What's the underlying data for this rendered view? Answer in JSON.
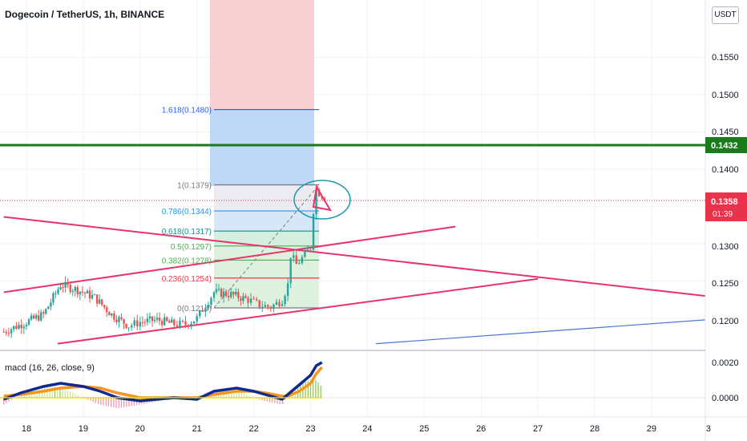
{
  "header": {
    "title": "Dogecoin / TetherUS, 1h, BINANCE",
    "currency": "USDT"
  },
  "price_axis": {
    "ticks": [
      "0.1550",
      "0.1500",
      "0.1450",
      "0.1400",
      "0.1300",
      "0.1250",
      "0.1200"
    ]
  },
  "badges": {
    "level": "0.1432",
    "last_price": "0.1358",
    "countdown": "01:39",
    "level_color": "#1b7a1b",
    "last_color": "#e8334a"
  },
  "macd": {
    "label": "macd (16, 26, close, 9)",
    "ticks": [
      "0.0020",
      "0.0000"
    ]
  },
  "time_axis": {
    "labels": [
      "18",
      "19",
      "20",
      "21",
      "22",
      "23",
      "24",
      "25",
      "26",
      "27",
      "28",
      "29",
      "3"
    ]
  },
  "fib": {
    "labels": [
      "1.618(0.1480)",
      "1(0.1379)",
      "0.786(0.1344)",
      "0.618(0.1317)",
      "0.5(0.1297)",
      "0.382(0.1278)",
      "0.236(0.1254)",
      "0(0.1214)"
    ],
    "colors": [
      "#2962ff",
      "#787b86",
      "#2196f3",
      "#089981",
      "#4caf50",
      "#4caf50",
      "#f23645",
      "#787b86"
    ]
  },
  "chart_data": {
    "type": "candlestick",
    "symbol": "Dogecoin / TetherUS",
    "interval": "1h",
    "exchange": "BINANCE",
    "y_range": [
      0.116,
      0.16
    ],
    "x_range_days": [
      17.6,
      30.0
    ],
    "last_price": 0.1358,
    "horizontal_level": 0.1432,
    "close_path": [
      [
        17.6,
        0.1182
      ],
      [
        18.0,
        0.1195
      ],
      [
        18.3,
        0.1205
      ],
      [
        18.6,
        0.1245
      ],
      [
        18.9,
        0.1238
      ],
      [
        19.2,
        0.1228
      ],
      [
        19.5,
        0.1205
      ],
      [
        19.8,
        0.119
      ],
      [
        20.0,
        0.1195
      ],
      [
        20.3,
        0.1198
      ],
      [
        20.6,
        0.1192
      ],
      [
        20.8,
        0.1192
      ],
      [
        21.0,
        0.12
      ],
      [
        21.15,
        0.1218
      ],
      [
        21.3,
        0.1235
      ],
      [
        21.6,
        0.1232
      ],
      [
        21.9,
        0.1225
      ],
      [
        22.1,
        0.1218
      ],
      [
        22.3,
        0.1215
      ],
      [
        22.5,
        0.1225
      ],
      [
        22.6,
        0.1245
      ],
      [
        22.65,
        0.1285
      ],
      [
        22.75,
        0.1272
      ],
      [
        22.9,
        0.1285
      ],
      [
        23.0,
        0.1295
      ],
      [
        23.05,
        0.1345
      ],
      [
        23.1,
        0.1372
      ],
      [
        23.2,
        0.1365
      ],
      [
        23.3,
        0.1358
      ]
    ],
    "fibonacci": [
      {
        "ratio": 1.618,
        "price": 0.148
      },
      {
        "ratio": 1,
        "price": 0.1379
      },
      {
        "ratio": 0.786,
        "price": 0.1344
      },
      {
        "ratio": 0.618,
        "price": 0.1317
      },
      {
        "ratio": 0.5,
        "price": 0.1297
      },
      {
        "ratio": 0.382,
        "price": 0.1278
      },
      {
        "ratio": 0.236,
        "price": 0.1254
      },
      {
        "ratio": 0,
        "price": 0.1214
      }
    ],
    "fib_time_range_days": [
      21.3,
      23.15
    ],
    "trendlines": [
      {
        "color": "#e8336a",
        "from": [
          17.6,
          0.1235
        ],
        "to": [
          25.55,
          0.1323
        ]
      },
      {
        "color": "#e8336a",
        "from": [
          17.6,
          0.1336
        ],
        "to": [
          29.95,
          0.123
        ]
      },
      {
        "color": "#e8336a",
        "from": [
          18.55,
          0.1166
        ],
        "to": [
          27.0,
          0.1253
        ]
      },
      {
        "color": "#4a76d8",
        "from": [
          24.15,
          0.1166
        ],
        "to": [
          29.95,
          0.1198
        ]
      }
    ],
    "macd": {
      "params": "16, 26, close, 9",
      "y_range": [
        -0.0012,
        0.0027
      ],
      "x": [
        17.6,
        17.9,
        18.3,
        18.6,
        19.0,
        19.3,
        19.6,
        20.0,
        20.3,
        20.6,
        21.0,
        21.3,
        21.7,
        22.0,
        22.2,
        22.5,
        22.6,
        22.8,
        23.0,
        23.1,
        23.2
      ],
      "macd": [
        -0.0001,
        0.0003,
        0.0007,
        0.0009,
        0.0007,
        0.0004,
        0.0,
        -0.0002,
        -0.0001,
        0.0,
        -0.0001,
        0.0004,
        0.0006,
        0.0004,
        0.0002,
        -0.0001,
        0.0002,
        0.0008,
        0.0014,
        0.002,
        0.0022
      ],
      "signal": [
        0.0001,
        0.0002,
        0.0004,
        0.0006,
        0.0007,
        0.0006,
        0.0003,
        0.0,
        0.0,
        0.0,
        0.0,
        0.0002,
        0.0004,
        0.0004,
        0.0003,
        0.0001,
        0.0001,
        0.0004,
        0.0009,
        0.0015,
        0.0019
      ]
    }
  }
}
